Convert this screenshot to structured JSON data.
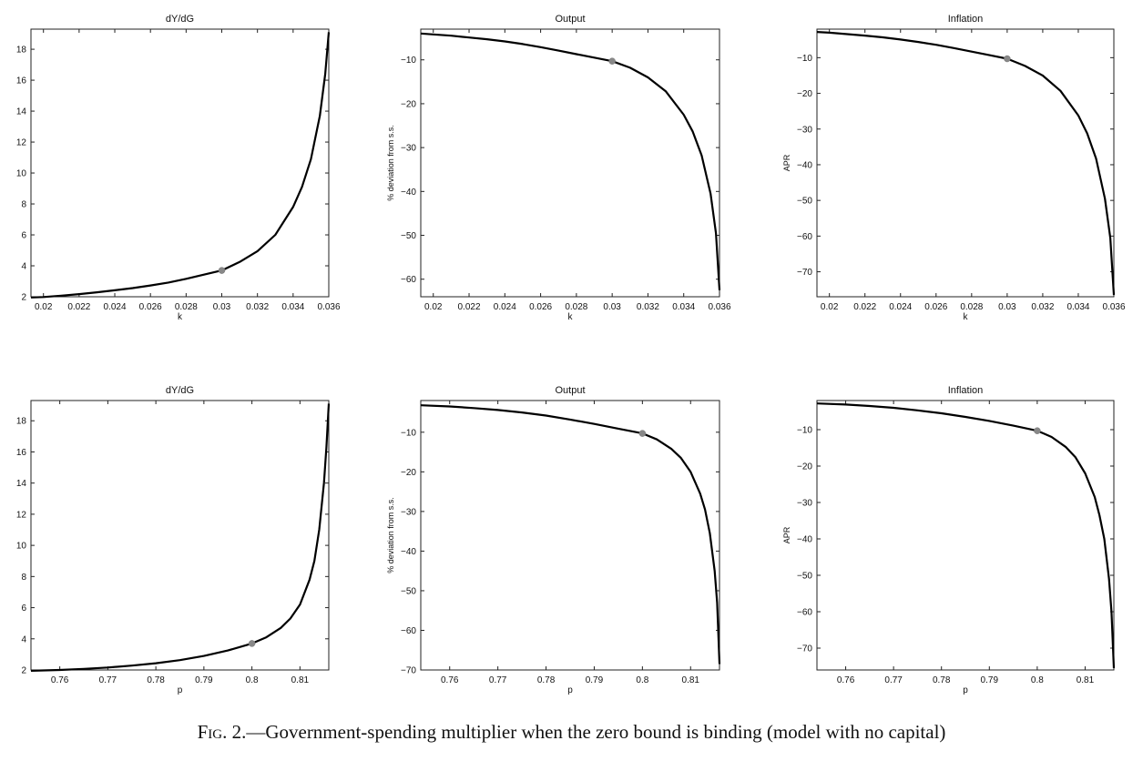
{
  "caption": {
    "figure_label": "Fig. 2.",
    "text": "—Government-spending multiplier when the zero bound is binding (model with no capital)"
  },
  "chart_data": [
    {
      "id": "k-multiplier",
      "type": "line",
      "title": "dY/dG",
      "xlabel": "k",
      "ylabel": "",
      "xlim": [
        0.0193,
        0.036
      ],
      "ylim": [
        2,
        19.3
      ],
      "xticks": [
        0.02,
        0.022,
        0.024,
        0.026,
        0.028,
        0.03,
        0.032,
        0.034,
        0.036
      ],
      "xtick_labels": [
        "0.02",
        "0.022",
        "0.024",
        "0.026",
        "0.028",
        "0.03",
        "0.032",
        "0.034",
        "0.036"
      ],
      "yticks": [
        2,
        4,
        6,
        8,
        10,
        12,
        14,
        16,
        18
      ],
      "ytick_labels": [
        "2",
        "4",
        "6",
        "8",
        "10",
        "12",
        "14",
        "16",
        "18"
      ],
      "series": [
        {
          "x": [
            0.0193,
            0.02,
            0.021,
            0.022,
            0.023,
            0.024,
            0.025,
            0.026,
            0.027,
            0.028,
            0.029,
            0.03,
            0.031,
            0.032,
            0.033,
            0.034,
            0.0345,
            0.035,
            0.0355,
            0.0358,
            0.036
          ],
          "y": [
            1.95,
            1.98,
            2.07,
            2.17,
            2.29,
            2.42,
            2.56,
            2.73,
            2.92,
            3.16,
            3.43,
            3.7,
            4.25,
            4.95,
            6.0,
            7.8,
            9.1,
            10.9,
            13.7,
            16.4,
            19.1
          ]
        }
      ],
      "highlight": {
        "x": 0.03,
        "y": 3.7
      }
    },
    {
      "id": "k-output",
      "type": "line",
      "title": "Output",
      "xlabel": "k",
      "ylabel": "% deviation from s.s.",
      "xlim": [
        0.0193,
        0.036
      ],
      "ylim": [
        -64,
        -3
      ],
      "xticks": [
        0.02,
        0.022,
        0.024,
        0.026,
        0.028,
        0.03,
        0.032,
        0.034,
        0.036
      ],
      "xtick_labels": [
        "0.02",
        "0.022",
        "0.024",
        "0.026",
        "0.028",
        "0.03",
        "0.032",
        "0.034",
        "0.036"
      ],
      "yticks": [
        -10,
        -20,
        -30,
        -40,
        -50,
        -60
      ],
      "ytick_labels": [
        "−10",
        "−20",
        "−30",
        "−40",
        "−50",
        "−60"
      ],
      "series": [
        {
          "x": [
            0.0193,
            0.02,
            0.021,
            0.022,
            0.023,
            0.024,
            0.025,
            0.026,
            0.027,
            0.028,
            0.029,
            0.03,
            0.031,
            0.032,
            0.033,
            0.034,
            0.0345,
            0.035,
            0.0355,
            0.0358,
            0.036
          ],
          "y": [
            -4.0,
            -4.2,
            -4.5,
            -4.9,
            -5.3,
            -5.8,
            -6.4,
            -7.1,
            -7.9,
            -8.7,
            -9.5,
            -10.3,
            -11.8,
            -14.0,
            -17.2,
            -22.5,
            -26.3,
            -31.8,
            -40.5,
            -49.5,
            -62.5
          ]
        }
      ],
      "highlight": {
        "x": 0.03,
        "y": -10.3
      }
    },
    {
      "id": "k-inflation",
      "type": "line",
      "title": "Inflation",
      "xlabel": "k",
      "ylabel": "APR",
      "xlim": [
        0.0193,
        0.036
      ],
      "ylim": [
        -77,
        -2
      ],
      "xticks": [
        0.02,
        0.022,
        0.024,
        0.026,
        0.028,
        0.03,
        0.032,
        0.034,
        0.036
      ],
      "xtick_labels": [
        "0.02",
        "0.022",
        "0.024",
        "0.026",
        "0.028",
        "0.03",
        "0.032",
        "0.034",
        "0.036"
      ],
      "yticks": [
        -10,
        -20,
        -30,
        -40,
        -50,
        -60,
        -70
      ],
      "ytick_labels": [
        "−10",
        "−20",
        "−30",
        "−40",
        "−50",
        "−60",
        "−70"
      ],
      "series": [
        {
          "x": [
            0.0193,
            0.02,
            0.021,
            0.022,
            0.023,
            0.024,
            0.025,
            0.026,
            0.027,
            0.028,
            0.029,
            0.03,
            0.031,
            0.032,
            0.033,
            0.034,
            0.0345,
            0.035,
            0.0355,
            0.0358,
            0.036
          ],
          "y": [
            -2.8,
            -3.0,
            -3.4,
            -3.8,
            -4.3,
            -4.9,
            -5.6,
            -6.4,
            -7.3,
            -8.3,
            -9.3,
            -10.3,
            -12.3,
            -15.0,
            -19.3,
            -26.2,
            -31.2,
            -38.3,
            -49.5,
            -60.5,
            -76.5
          ]
        }
      ],
      "highlight": {
        "x": 0.03,
        "y": -10.3
      }
    },
    {
      "id": "p-multiplier",
      "type": "line",
      "title": "dY/dG",
      "xlabel": "p",
      "ylabel": "",
      "xlim": [
        0.754,
        0.816
      ],
      "ylim": [
        2,
        19.3
      ],
      "xticks": [
        0.76,
        0.77,
        0.78,
        0.79,
        0.8,
        0.81
      ],
      "xtick_labels": [
        "0.76",
        "0.77",
        "0.78",
        "0.79",
        "0.8",
        "0.81"
      ],
      "yticks": [
        2,
        4,
        6,
        8,
        10,
        12,
        14,
        16,
        18
      ],
      "ytick_labels": [
        "2",
        "4",
        "6",
        "8",
        "10",
        "12",
        "14",
        "16",
        "18"
      ],
      "series": [
        {
          "x": [
            0.754,
            0.76,
            0.765,
            0.77,
            0.775,
            0.78,
            0.785,
            0.79,
            0.795,
            0.8,
            0.803,
            0.806,
            0.808,
            0.81,
            0.812,
            0.813,
            0.814,
            0.815,
            0.8155,
            0.816
          ],
          "y": [
            1.95,
            2.0,
            2.07,
            2.16,
            2.28,
            2.43,
            2.63,
            2.9,
            3.25,
            3.7,
            4.1,
            4.7,
            5.3,
            6.2,
            7.8,
            9.0,
            11.0,
            14.0,
            16.3,
            19.1
          ]
        }
      ],
      "highlight": {
        "x": 0.8,
        "y": 3.7
      }
    },
    {
      "id": "p-output",
      "type": "line",
      "title": "Output",
      "xlabel": "p",
      "ylabel": "% deviation from s.s.",
      "xlim": [
        0.754,
        0.816
      ],
      "ylim": [
        -70,
        -2
      ],
      "xticks": [
        0.76,
        0.77,
        0.78,
        0.79,
        0.8,
        0.81
      ],
      "xtick_labels": [
        "0.76",
        "0.77",
        "0.78",
        "0.79",
        "0.8",
        "0.81"
      ],
      "yticks": [
        -10,
        -20,
        -30,
        -40,
        -50,
        -60,
        -70
      ],
      "ytick_labels": [
        "−10",
        "−20",
        "−30",
        "−40",
        "−50",
        "−60",
        "−70"
      ],
      "series": [
        {
          "x": [
            0.754,
            0.76,
            0.765,
            0.77,
            0.775,
            0.78,
            0.785,
            0.79,
            0.795,
            0.8,
            0.803,
            0.806,
            0.808,
            0.81,
            0.812,
            0.813,
            0.814,
            0.815,
            0.8155,
            0.816
          ],
          "y": [
            -3.2,
            -3.5,
            -3.9,
            -4.4,
            -5.0,
            -5.8,
            -6.8,
            -7.9,
            -9.1,
            -10.3,
            -11.8,
            -14.2,
            -16.5,
            -20.0,
            -25.5,
            -29.5,
            -35.5,
            -45.0,
            -53.0,
            -68.5
          ]
        }
      ],
      "highlight": {
        "x": 0.8,
        "y": -10.3
      }
    },
    {
      "id": "p-inflation",
      "type": "line",
      "title": "Inflation",
      "xlabel": "p",
      "ylabel": "APR",
      "xlim": [
        0.754,
        0.816
      ],
      "ylim": [
        -76,
        -2
      ],
      "xticks": [
        0.76,
        0.77,
        0.78,
        0.79,
        0.8,
        0.81
      ],
      "xtick_labels": [
        "0.76",
        "0.77",
        "0.78",
        "0.79",
        "0.8",
        "0.81"
      ],
      "yticks": [
        -10,
        -20,
        -30,
        -40,
        -50,
        -60,
        -70
      ],
      "ytick_labels": [
        "−10",
        "−20",
        "−30",
        "−40",
        "−50",
        "−60",
        "−70"
      ],
      "series": [
        {
          "x": [
            0.754,
            0.76,
            0.765,
            0.77,
            0.775,
            0.78,
            0.785,
            0.79,
            0.795,
            0.8,
            0.803,
            0.806,
            0.808,
            0.81,
            0.812,
            0.813,
            0.814,
            0.815,
            0.8155,
            0.816
          ],
          "y": [
            -2.8,
            -3.1,
            -3.5,
            -4.0,
            -4.7,
            -5.5,
            -6.5,
            -7.6,
            -8.9,
            -10.3,
            -12.0,
            -14.8,
            -17.6,
            -22.0,
            -28.5,
            -33.5,
            -40.0,
            -51.0,
            -60.0,
            -75.5
          ]
        }
      ],
      "highlight": {
        "x": 0.8,
        "y": -10.3
      }
    }
  ]
}
